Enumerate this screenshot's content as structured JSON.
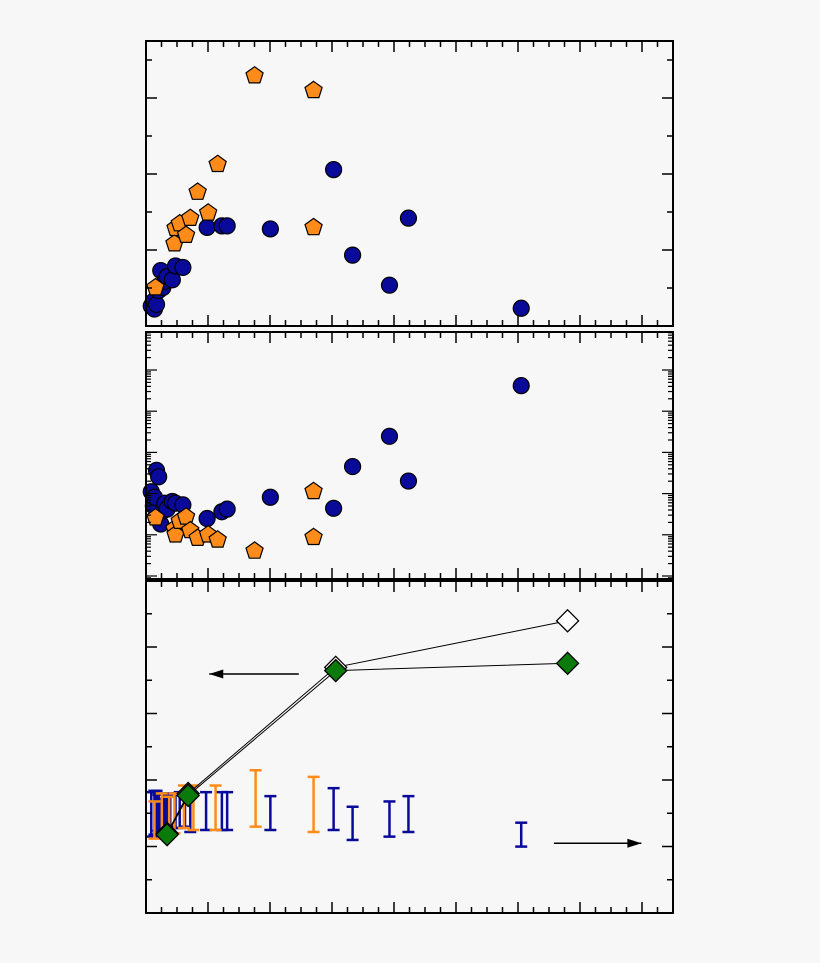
{
  "colors": {
    "background": "#f7f7f7",
    "blue_series": "#0a0a9a",
    "orange_series": "#ff8c1a",
    "green_series": "#0a7a0a",
    "open_series": "#ffffff",
    "axis": "#000000"
  },
  "chart_data": [
    {
      "id": "top-panel",
      "type": "scatter",
      "title": "",
      "xlabel": "",
      "ylabel": "",
      "xlim": [
        0,
        500
      ],
      "ylim": [
        0,
        3.7
      ],
      "grid": false,
      "tick_labels_shown": false,
      "series": [
        {
          "marker": "circle",
          "color": "#0a0a9a",
          "points": [
            [
              5,
              0.26
            ],
            [
              7,
              0.32
            ],
            [
              8,
              0.22
            ],
            [
              10,
              0.28
            ],
            [
              12,
              0.46
            ],
            [
              14,
              0.72
            ],
            [
              16,
              0.5
            ],
            [
              18,
              0.58
            ],
            [
              20,
              0.64
            ],
            [
              25,
              0.6
            ],
            [
              28,
              0.78
            ],
            [
              35,
              0.76
            ],
            [
              58,
              1.28
            ],
            [
              72,
              1.3
            ],
            [
              77,
              1.3
            ],
            [
              118,
              1.26
            ],
            [
              178,
              2.03
            ],
            [
              196,
              0.92
            ],
            [
              231,
              0.53
            ],
            [
              249,
              1.4
            ],
            [
              356,
              0.23
            ]
          ]
        },
        {
          "marker": "pentagon",
          "color": "#ff8c1a",
          "points": [
            [
              9,
              0.5
            ],
            [
              27,
              1.07
            ],
            [
              28,
              1.27
            ],
            [
              32,
              1.33
            ],
            [
              38,
              1.18
            ],
            [
              42,
              1.4
            ],
            [
              49,
              1.74
            ],
            [
              59,
              1.47
            ],
            [
              68,
              2.1
            ],
            [
              103,
              3.25
            ],
            [
              159,
              1.28
            ],
            [
              159,
              3.06
            ]
          ]
        }
      ]
    },
    {
      "id": "middle-panel",
      "type": "scatter",
      "title": "",
      "xlabel": "",
      "ylabel": "",
      "xlim": [
        0,
        500
      ],
      "ylim": [
        0,
        5.8
      ],
      "grid": false,
      "tick_labels_shown": false,
      "series": [
        {
          "marker": "circle",
          "color": "#0a0a9a",
          "points": [
            [
              5,
              2.05
            ],
            [
              7,
              1.72
            ],
            [
              8,
              1.92
            ],
            [
              10,
              2.55
            ],
            [
              12,
              2.4
            ],
            [
              14,
              1.29
            ],
            [
              16,
              1.6
            ],
            [
              18,
              1.78
            ],
            [
              20,
              1.64
            ],
            [
              25,
              1.82
            ],
            [
              28,
              1.78
            ],
            [
              35,
              1.74
            ],
            [
              58,
              1.42
            ],
            [
              72,
              1.58
            ],
            [
              77,
              1.64
            ],
            [
              118,
              1.92
            ],
            [
              178,
              1.66
            ],
            [
              196,
              2.64
            ],
            [
              231,
              3.35
            ],
            [
              249,
              2.3
            ],
            [
              356,
              4.54
            ]
          ]
        },
        {
          "marker": "pentagon",
          "color": "#ff8c1a",
          "points": [
            [
              9,
              1.44
            ],
            [
              27,
              1.18
            ],
            [
              28,
              1.04
            ],
            [
              32,
              1.36
            ],
            [
              38,
              1.46
            ],
            [
              42,
              1.14
            ],
            [
              49,
              0.96
            ],
            [
              59,
              1.04
            ],
            [
              68,
              0.92
            ],
            [
              103,
              0.66
            ],
            [
              159,
              2.06
            ],
            [
              159,
              0.98
            ]
          ]
        }
      ]
    },
    {
      "id": "bottom-panel",
      "type": "line",
      "title": "",
      "xlabel": "",
      "ylabel": "",
      "xlim": [
        0,
        500
      ],
      "ylim": [
        0,
        5
      ],
      "grid": false,
      "tick_labels_shown": false,
      "series": [
        {
          "marker": "diamond-open",
          "color": "#ffffff",
          "connected": true,
          "points": [
            [
              20,
              1.2
            ],
            [
              40,
              1.8
            ],
            [
              180,
              3.7
            ],
            [
              400,
              4.4
            ]
          ]
        },
        {
          "marker": "diamond-filled",
          "color": "#0a7a0a",
          "connected": true,
          "points": [
            [
              20,
              1.18
            ],
            [
              40,
              1.77
            ],
            [
              180,
              3.65
            ],
            [
              400,
              3.76
            ]
          ]
        }
      ],
      "error_bars": [
        {
          "color": "#0a0a9a",
          "bars": [
            [
              5,
              1.15,
              1.82
            ],
            [
              8,
              1.18,
              1.84
            ],
            [
              10,
              1.15,
              1.84
            ],
            [
              12,
              1.24,
              1.78
            ],
            [
              14,
              1.2,
              1.7
            ],
            [
              16,
              1.2,
              1.8
            ],
            [
              18,
              1.24,
              1.72
            ],
            [
              20,
              1.24,
              1.78
            ],
            [
              23,
              1.3,
              1.8
            ],
            [
              28,
              1.28,
              1.8
            ],
            [
              32,
              1.28,
              1.82
            ],
            [
              37,
              1.3,
              1.82
            ],
            [
              42,
              1.22,
              1.82
            ],
            [
              57,
              1.25,
              1.82
            ],
            [
              72,
              1.25,
              1.82
            ],
            [
              77,
              1.25,
              1.82
            ],
            [
              118,
              1.25,
              1.76
            ],
            [
              178,
              1.25,
              1.88
            ],
            [
              196,
              1.1,
              1.6
            ],
            [
              231,
              1.15,
              1.68
            ],
            [
              249,
              1.22,
              1.76
            ],
            [
              356,
              1.0,
              1.36
            ]
          ]
        },
        {
          "color": "#ff8c1a",
          "bars": [
            [
              8,
              1.12,
              1.68
            ],
            [
              15,
              1.2,
              1.8
            ],
            [
              22,
              1.15,
              1.75
            ],
            [
              27,
              1.2,
              1.8
            ],
            [
              36,
              1.28,
              1.92
            ],
            [
              45,
              1.25,
              1.92
            ],
            [
              66,
              1.25,
              1.92
            ],
            [
              104,
              1.3,
              2.15
            ],
            [
              159,
              1.22,
              2.05
            ]
          ]
        }
      ],
      "annotations": [
        {
          "kind": "arrow",
          "direction": "left",
          "from": [
            145,
            3.6
          ],
          "to": [
            60,
            3.6
          ]
        },
        {
          "kind": "arrow",
          "direction": "right",
          "from": [
            387,
            1.05
          ],
          "to": [
            470,
            1.05
          ]
        }
      ]
    }
  ]
}
